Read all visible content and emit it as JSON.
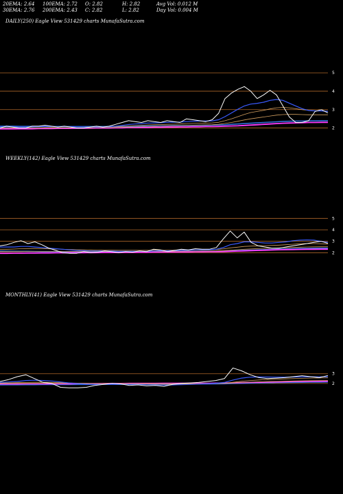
{
  "header": {
    "ema20": "20EMA: 2.64",
    "ema100": "100EMA: 2.72",
    "open": "O: 2.82",
    "high": "H: 2.82",
    "avg_vol": "Avg Vol: 0.012  M",
    "ema30": "30EMA: 2.76",
    "ema200": "200EMA: 2.43",
    "close": "C: 2.82",
    "low": "L: 2.82",
    "day_vol": "Day Vol: 0.004  M"
  },
  "colors": {
    "background": "#000000",
    "price": "#ffffff",
    "ema_short": "#3a5bff",
    "ema_long": "#d4a060",
    "ma_magenta": "#ff3cff",
    "ma_blue": "#2f6fd8",
    "level_line": "#b0682a"
  },
  "chart_data": [
    {
      "type": "line",
      "title": "DAILY(250) Eagle  View  531429 charts MunafaSutra.com",
      "y_ticks": [
        "5",
        "4",
        "3",
        "2"
      ],
      "levels": [
        5,
        4,
        3,
        2
      ],
      "price": [
        2.0,
        2.1,
        2.05,
        2.0,
        2.0,
        2.1,
        2.1,
        2.15,
        2.1,
        2.05,
        2.1,
        2.05,
        2.0,
        2.0,
        2.05,
        2.1,
        2.05,
        2.1,
        2.2,
        2.3,
        2.4,
        2.35,
        2.3,
        2.4,
        2.35,
        2.3,
        2.4,
        2.35,
        2.3,
        2.5,
        2.45,
        2.4,
        2.35,
        2.45,
        2.8,
        3.6,
        3.9,
        4.1,
        4.25,
        4.0,
        3.6,
        3.8,
        4.05,
        3.8,
        3.2,
        2.6,
        2.3,
        2.3,
        2.4,
        2.9,
        3.0,
        2.82
      ],
      "ema_short": [
        2.05,
        2.06,
        2.06,
        2.05,
        2.05,
        2.06,
        2.07,
        2.08,
        2.08,
        2.07,
        2.07,
        2.07,
        2.06,
        2.05,
        2.05,
        2.06,
        2.06,
        2.07,
        2.1,
        2.14,
        2.19,
        2.22,
        2.24,
        2.27,
        2.28,
        2.29,
        2.31,
        2.32,
        2.32,
        2.35,
        2.37,
        2.38,
        2.38,
        2.39,
        2.45,
        2.62,
        2.82,
        3.02,
        3.2,
        3.3,
        3.34,
        3.4,
        3.5,
        3.55,
        3.5,
        3.35,
        3.2,
        3.05,
        2.95,
        2.93,
        2.93,
        2.9
      ],
      "ema_mid": [
        2.05,
        2.05,
        2.05,
        2.05,
        2.05,
        2.05,
        2.06,
        2.06,
        2.06,
        2.06,
        2.06,
        2.06,
        2.06,
        2.06,
        2.06,
        2.06,
        2.06,
        2.06,
        2.07,
        2.09,
        2.11,
        2.13,
        2.15,
        2.17,
        2.18,
        2.19,
        2.2,
        2.21,
        2.22,
        2.24,
        2.25,
        2.26,
        2.27,
        2.28,
        2.31,
        2.4,
        2.5,
        2.62,
        2.74,
        2.84,
        2.9,
        2.96,
        3.04,
        3.1,
        3.12,
        3.1,
        3.05,
        3.0,
        2.96,
        2.94,
        2.93,
        2.92
      ],
      "ema_long": [
        2.0,
        2.0,
        2.0,
        2.0,
        2.0,
        2.0,
        2.0,
        2.01,
        2.01,
        2.01,
        2.01,
        2.01,
        2.01,
        2.01,
        2.01,
        2.02,
        2.02,
        2.02,
        2.03,
        2.04,
        2.05,
        2.06,
        2.07,
        2.08,
        2.09,
        2.1,
        2.11,
        2.12,
        2.13,
        2.14,
        2.15,
        2.16,
        2.17,
        2.18,
        2.2,
        2.25,
        2.3,
        2.37,
        2.44,
        2.5,
        2.55,
        2.6,
        2.65,
        2.7,
        2.73,
        2.74,
        2.74,
        2.73,
        2.72,
        2.72,
        2.72,
        2.72
      ],
      "ma_magenta": [
        1.95,
        1.95,
        1.95,
        1.96,
        1.96,
        1.96,
        1.97,
        1.97,
        1.97,
        1.98,
        1.98,
        1.98,
        1.99,
        1.99,
        1.99,
        2.0,
        2.0,
        2.0,
        2.01,
        2.01,
        2.02,
        2.02,
        2.03,
        2.03,
        2.04,
        2.04,
        2.05,
        2.05,
        2.06,
        2.06,
        2.07,
        2.07,
        2.08,
        2.08,
        2.09,
        2.1,
        2.11,
        2.12,
        2.14,
        2.16,
        2.18,
        2.2,
        2.22,
        2.24,
        2.26,
        2.27,
        2.28,
        2.29,
        2.3,
        2.3,
        2.31,
        2.31
      ],
      "ma_blue": [
        2.1,
        2.1,
        2.1,
        2.09,
        2.09,
        2.09,
        2.09,
        2.09,
        2.08,
        2.08,
        2.08,
        2.08,
        2.08,
        2.08,
        2.08,
        2.08,
        2.08,
        2.08,
        2.08,
        2.09,
        2.09,
        2.1,
        2.1,
        2.11,
        2.11,
        2.12,
        2.12,
        2.13,
        2.13,
        2.14,
        2.14,
        2.15,
        2.15,
        2.16,
        2.17,
        2.18,
        2.2,
        2.22,
        2.24,
        2.26,
        2.28,
        2.3,
        2.32,
        2.34,
        2.36,
        2.37,
        2.38,
        2.38,
        2.39,
        2.39,
        2.4,
        2.4
      ],
      "ylim": [
        1.5,
        5.6
      ]
    },
    {
      "type": "line",
      "title": "WEEKLY(142) Eagle  View  531429 charts MunafaSutra.com",
      "y_ticks": [
        "5",
        "4",
        "3",
        "2"
      ],
      "levels": [
        5,
        4,
        3,
        2
      ],
      "price": [
        2.6,
        2.7,
        2.9,
        3.05,
        2.8,
        2.95,
        2.7,
        2.4,
        2.2,
        2.0,
        1.95,
        1.95,
        2.1,
        2.0,
        2.05,
        2.15,
        2.1,
        2.0,
        2.1,
        2.05,
        2.15,
        2.1,
        2.3,
        2.25,
        2.1,
        2.2,
        2.3,
        2.25,
        2.35,
        2.3,
        2.3,
        2.45,
        3.2,
        3.9,
        3.3,
        3.8,
        2.9,
        2.6,
        2.5,
        2.4,
        2.4,
        2.5,
        2.6,
        2.7,
        2.8,
        2.9,
        3.0,
        2.82
      ],
      "ema_short": [
        2.5,
        2.5,
        2.5,
        2.55,
        2.55,
        2.5,
        2.45,
        2.4,
        2.35,
        2.3,
        2.25,
        2.2,
        2.18,
        2.15,
        2.15,
        2.15,
        2.14,
        2.12,
        2.12,
        2.12,
        2.12,
        2.12,
        2.15,
        2.17,
        2.17,
        2.18,
        2.2,
        2.22,
        2.24,
        2.25,
        2.26,
        2.3,
        2.45,
        2.7,
        2.8,
        2.95,
        2.95,
        2.9,
        2.85,
        2.85,
        2.9,
        2.95,
        3.05,
        3.1,
        3.12,
        3.1,
        3.0,
        2.9
      ],
      "ema_mid": [
        2.3,
        2.3,
        2.32,
        2.35,
        2.36,
        2.37,
        2.36,
        2.34,
        2.32,
        2.3,
        2.28,
        2.26,
        2.25,
        2.24,
        2.23,
        2.22,
        2.22,
        2.21,
        2.21,
        2.21,
        2.21,
        2.21,
        2.22,
        2.22,
        2.22,
        2.23,
        2.23,
        2.24,
        2.25,
        2.26,
        2.27,
        2.28,
        2.33,
        2.42,
        2.48,
        2.55,
        2.58,
        2.6,
        2.62,
        2.64,
        2.66,
        2.7,
        2.74,
        2.78,
        2.8,
        2.8,
        2.78,
        2.76
      ],
      "ema_long": [
        2.1,
        2.1,
        2.1,
        2.1,
        2.11,
        2.11,
        2.11,
        2.11,
        2.11,
        2.11,
        2.11,
        2.11,
        2.11,
        2.11,
        2.11,
        2.11,
        2.11,
        2.11,
        2.11,
        2.11,
        2.12,
        2.12,
        2.12,
        2.12,
        2.13,
        2.13,
        2.13,
        2.14,
        2.14,
        2.15,
        2.15,
        2.16,
        2.18,
        2.22,
        2.26,
        2.3,
        2.33,
        2.36,
        2.38,
        2.4,
        2.42,
        2.44,
        2.46,
        2.48,
        2.5,
        2.51,
        2.52,
        2.52
      ],
      "ma_magenta": [
        1.95,
        1.95,
        1.96,
        1.96,
        1.97,
        1.97,
        1.98,
        1.98,
        1.99,
        1.99,
        2.0,
        2.0,
        2.0,
        2.01,
        2.01,
        2.02,
        2.02,
        2.02,
        2.03,
        2.03,
        2.04,
        2.04,
        2.05,
        2.05,
        2.06,
        2.06,
        2.07,
        2.07,
        2.08,
        2.08,
        2.09,
        2.09,
        2.1,
        2.12,
        2.14,
        2.16,
        2.18,
        2.2,
        2.22,
        2.24,
        2.26,
        2.27,
        2.28,
        2.29,
        2.3,
        2.3,
        2.31,
        2.31
      ],
      "ma_blue": [
        2.15,
        2.14,
        2.13,
        2.12,
        2.12,
        2.11,
        2.1,
        2.1,
        2.09,
        2.09,
        2.08,
        2.08,
        2.08,
        2.08,
        2.08,
        2.08,
        2.08,
        2.08,
        2.08,
        2.08,
        2.08,
        2.09,
        2.09,
        2.1,
        2.1,
        2.11,
        2.11,
        2.12,
        2.12,
        2.13,
        2.13,
        2.14,
        2.15,
        2.17,
        2.19,
        2.21,
        2.23,
        2.25,
        2.27,
        2.29,
        2.31,
        2.33,
        2.35,
        2.37,
        2.38,
        2.39,
        2.4,
        2.4
      ],
      "ylim": [
        1.0,
        5.8
      ]
    },
    {
      "type": "line",
      "title": "MONTHLY(41) Eagle  View  531429 charts MunafaSutra.com",
      "y_ticks": [
        "3",
        "2"
      ],
      "levels": [
        3,
        2
      ],
      "price": [
        2.2,
        2.4,
        2.7,
        2.9,
        2.5,
        2.1,
        2.0,
        1.6,
        1.55,
        1.55,
        1.6,
        1.8,
        1.9,
        2.0,
        1.95,
        1.8,
        1.85,
        1.75,
        1.8,
        1.7,
        1.9,
        2.0,
        2.05,
        2.1,
        2.2,
        2.3,
        2.5,
        3.6,
        3.3,
        2.9,
        2.6,
        2.5,
        2.55,
        2.6,
        2.7,
        2.8,
        2.7,
        2.6,
        2.82
      ],
      "ema_short": [
        2.1,
        2.15,
        2.2,
        2.3,
        2.33,
        2.3,
        2.25,
        2.15,
        2.05,
        1.98,
        1.92,
        1.9,
        1.9,
        1.91,
        1.91,
        1.9,
        1.89,
        1.87,
        1.86,
        1.84,
        1.85,
        1.87,
        1.9,
        1.93,
        1.97,
        2.02,
        2.1,
        2.35,
        2.55,
        2.65,
        2.67,
        2.66,
        2.65,
        2.65,
        2.66,
        2.68,
        2.69,
        2.68,
        2.7
      ],
      "ema_mid": [
        2.05,
        2.06,
        2.08,
        2.1,
        2.12,
        2.12,
        2.11,
        2.09,
        2.06,
        2.03,
        2.0,
        1.98,
        1.97,
        1.96,
        1.96,
        1.95,
        1.94,
        1.93,
        1.92,
        1.91,
        1.91,
        1.92,
        1.93,
        1.94,
        1.96,
        1.98,
        2.02,
        2.12,
        2.22,
        2.3,
        2.36,
        2.4,
        2.44,
        2.47,
        2.5,
        2.53,
        2.55,
        2.56,
        2.58
      ],
      "ema_long": [
        2.0,
        2.0,
        2.01,
        2.01,
        2.02,
        2.02,
        2.02,
        2.01,
        2.01,
        2.0,
        2.0,
        1.99,
        1.99,
        1.99,
        1.99,
        1.99,
        1.98,
        1.98,
        1.98,
        1.98,
        1.98,
        1.98,
        1.98,
        1.99,
        1.99,
        2.0,
        2.01,
        2.05,
        2.09,
        2.13,
        2.16,
        2.19,
        2.21,
        2.23,
        2.25,
        2.27,
        2.29,
        2.3,
        2.31
      ],
      "ma_magenta": [
        1.95,
        1.95,
        1.95,
        1.96,
        1.96,
        1.96,
        1.97,
        1.97,
        1.97,
        1.98,
        1.98,
        1.98,
        1.99,
        1.99,
        1.99,
        2.0,
        2.0,
        2.0,
        2.0,
        2.01,
        2.01,
        2.01,
        2.02,
        2.02,
        2.02,
        2.03,
        2.04,
        2.06,
        2.08,
        2.1,
        2.12,
        2.14,
        2.16,
        2.18,
        2.2,
        2.21,
        2.22,
        2.23,
        2.24
      ],
      "ma_blue": [
        1.85,
        1.86,
        1.86,
        1.87,
        1.87,
        1.88,
        1.88,
        1.89,
        1.89,
        1.9,
        1.9,
        1.9,
        1.91,
        1.91,
        1.91,
        1.92,
        1.92,
        1.92,
        1.93,
        1.93,
        1.93,
        1.94,
        1.94,
        1.95,
        1.95,
        1.96,
        1.97,
        1.99,
        2.01,
        2.03,
        2.05,
        2.07,
        2.09,
        2.1,
        2.11,
        2.12,
        2.13,
        2.14,
        2.15
      ],
      "ylim": [
        0.5,
        4.4
      ]
    }
  ]
}
